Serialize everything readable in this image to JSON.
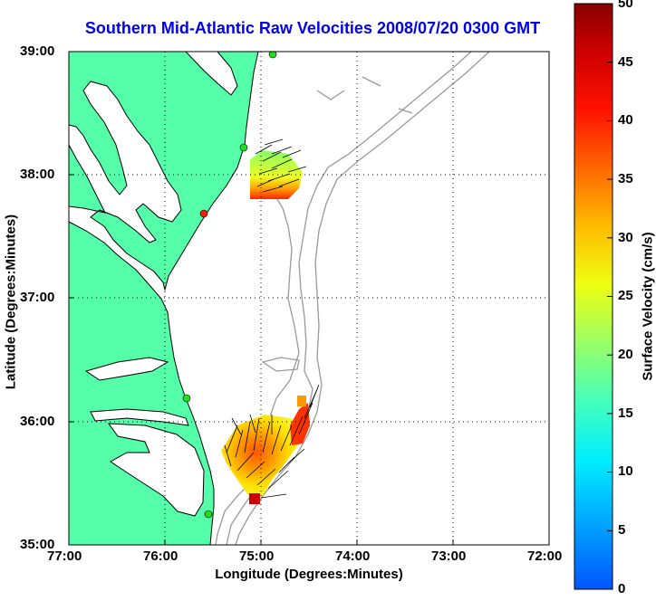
{
  "title": "Southern Mid-Atlantic Raw Velocities 2008/07/20 0300 GMT",
  "xlabel": "Longitude (Degrees:Minutes)",
  "ylabel": "Latitude (Degrees:Minutes)",
  "x_ticks": [
    "77:00",
    "76:00",
    "75:00",
    "74:00",
    "73:00",
    "72:00"
  ],
  "y_ticks": [
    "39:00",
    "38:00",
    "37:00",
    "36:00",
    "35:00"
  ],
  "colorbar": {
    "label": "Surface Velocity (cm/s)",
    "ticks": [
      "50",
      "45",
      "40",
      "35",
      "30",
      "25",
      "20",
      "15",
      "10",
      "5",
      "0"
    ],
    "range": [
      0,
      50
    ]
  },
  "colors": {
    "land": "#55ffaa",
    "title": "#0000ee",
    "station": "#22dd22"
  },
  "map": {
    "lon_range": [
      -77,
      -72
    ],
    "lat_range": [
      35,
      39
    ]
  }
}
